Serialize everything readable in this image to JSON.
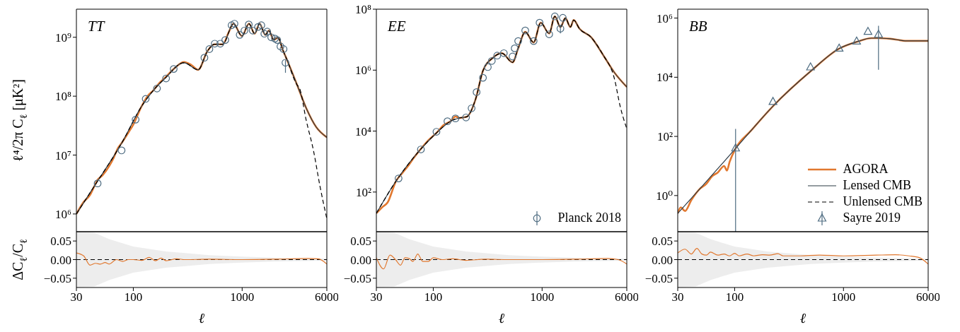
{
  "chart_data": [
    {
      "type": "line",
      "title": "TT",
      "ylabel": "ℓ⁴/2π C$_{ℓ}$ [μK²]",
      "log": "xy",
      "xlim": [
        30,
        6000
      ],
      "xticks": [
        30,
        100,
        1000,
        6000
      ],
      "ylim": [
        500000,
        3000000000
      ],
      "yticks": [
        {
          "value": 1000000,
          "label": "10⁶"
        },
        {
          "value": 10000000,
          "label": "10⁷"
        },
        {
          "value": 100000000,
          "label": "10⁸"
        },
        {
          "value": 1000000000,
          "label": "10⁹"
        }
      ],
      "tick_labels": "y",
      "legend": false,
      "series": [
        {
          "color": "#e1782f",
          "x": [
            30,
            35,
            40,
            44,
            47,
            52,
            60,
            66,
            72,
            79,
            90,
            100,
            119,
            135,
            153,
            175,
            195,
            240,
            292,
            340,
            394,
            479,
            556,
            664,
            750,
            832,
            995,
            1156,
            1303,
            1445,
            1633,
            1758,
            1950,
            2138,
            2371,
            2559,
            3199,
            3890,
            4786,
            6000
          ],
          "values": [
            1000000,
            1600000,
            2100000,
            3000000,
            3800000,
            4500000,
            6500000,
            9000000,
            13000000,
            16500000,
            24000000,
            33000000,
            67000000,
            100000000,
            126000000,
            170000000,
            205000000,
            300000000,
            380000000,
            340000000,
            280000000,
            580000000,
            760000000,
            760000000,
            1200000000,
            1700000000,
            1050000000,
            1700000000,
            1150000000,
            1700000000,
            1100000000,
            1300000000,
            910000000,
            980000000,
            600000000,
            430000000,
            155000000,
            62000000,
            30000000,
            20000000
          ]
        },
        {
          "color": "#2b3a45",
          "x": [
            30,
            44,
            79,
            119,
            153,
            195,
            292,
            394,
            479,
            556,
            664,
            832,
            995,
            1156,
            1303,
            1445,
            1633,
            1758,
            1950,
            2138,
            2371,
            2559,
            3199,
            3890,
            4786,
            6000
          ],
          "values": [
            1000000,
            3000000,
            16500000,
            67000000,
            126000000,
            200000000,
            370000000,
            280000000,
            580000000,
            760000000,
            760000000,
            1700000000,
            1050000000,
            1700000000,
            1150000000,
            1700000000,
            1100000000,
            1300000000,
            910000000,
            980000000,
            600000000,
            430000000,
            155000000,
            62000000,
            30000000,
            20000000
          ]
        },
        {
          "color": "#000000",
          "line_style": "dashed",
          "x": [
            30,
            44,
            79,
            119,
            153,
            195,
            292,
            394,
            479,
            556,
            664,
            832,
            995,
            1156,
            1303,
            1445,
            1633,
            1758,
            1950,
            2138,
            2371,
            2559,
            3199,
            3350,
            3890,
            4519,
            5200,
            6000
          ],
          "values": [
            1000000,
            3000000,
            16500000,
            67000000,
            126000000,
            200000000,
            370000000,
            280000000,
            580000000,
            760000000,
            760000000,
            1700000000,
            1050000000,
            1700000000,
            1150000000,
            1700000000,
            1100000000,
            1300000000,
            910000000,
            980000000,
            600000000,
            430000000,
            155000000,
            140000000,
            38000000,
            12000000,
            2900000,
            830000
          ]
        },
        {
          "type": "scatter",
          "color": "#4d6b80",
          "marker": "circle",
          "x": [
            47,
            78,
            105,
            130,
            165,
            200,
            235,
            450,
            500,
            560,
            630,
            700,
            800,
            850,
            950,
            1050,
            1150,
            1250,
            1400,
            1500,
            1600,
            1700,
            1850,
            2000,
            2100,
            2250,
            2400,
            2500
          ],
          "values": [
            3300000,
            12000000,
            40000000,
            90000000,
            135000000,
            200000000,
            290000000,
            450000000,
            630000000,
            780000000,
            780000000,
            900000000,
            1600000000,
            1700000000,
            1100000000,
            1300000000,
            1650000000,
            1300000000,
            1500000000,
            1600000000,
            1150000000,
            1250000000,
            1000000000,
            950000000,
            900000000,
            700000000,
            630000000,
            370000000
          ],
          "errors": [
            null,
            null,
            null,
            null,
            null,
            null,
            null,
            null,
            null,
            null,
            null,
            null,
            null,
            null,
            null,
            null,
            null,
            null,
            null,
            null,
            null,
            null,
            null,
            null,
            null,
            null,
            null,
            [
              250000000,
              410000000
            ]
          ]
        }
      ]
    },
    {
      "type": "line",
      "title": "EE",
      "log": "xy",
      "xlim": [
        30,
        6000
      ],
      "xticks": [
        30,
        100,
        1000,
        6000
      ],
      "ylim": [
        5,
        100000000
      ],
      "yticks": [
        {
          "value": 100,
          "label": "10²"
        },
        {
          "value": 10000,
          "label": "10⁴"
        },
        {
          "value": 1000000,
          "label": "10⁶"
        },
        {
          "value": 100000000,
          "label": "10⁸"
        }
      ],
      "tick_labels": "y",
      "legend": "bottom right",
      "series": [
        {
          "color": "#e1782f",
          "x": [
            30,
            34,
            38,
            45.5,
            52,
            60,
            66,
            74.7,
            90,
            107,
            125,
            144,
            160,
            174,
            203,
            245,
            286,
            351,
            427,
            535,
            603,
            700,
            836,
            971,
            1161,
            1309,
            1473,
            1637,
            1820,
            1950,
            2203,
            2820,
            3606,
            4645,
            6000
          ],
          "values": [
            20,
            32,
            45,
            230,
            420,
            800,
            1300,
            2300,
            5000,
            8700,
            16000,
            21000,
            30000,
            27000,
            29500,
            112000,
            950000,
            2500000,
            3600000,
            1800000,
            5200000,
            18000000,
            8100000,
            36000000,
            16000000,
            58000000,
            26000000,
            51000000,
            26000000,
            44000000,
            23000000,
            12000000,
            3300000,
            810000,
            280000
          ]
        },
        {
          "color": "#2b3a45",
          "x": [
            30,
            45.5,
            74.7,
            107,
            144,
            174,
            203,
            245,
            286,
            351,
            427,
            535,
            603,
            700,
            836,
            971,
            1161,
            1309,
            1473,
            1637,
            1820,
            1950,
            2203,
            2820,
            3606,
            4645,
            6000
          ],
          "values": [
            20,
            230,
            2300,
            8700,
            21000,
            27000,
            29500,
            112000,
            950000,
            2500000,
            3600000,
            1800000,
            5200000,
            18000000,
            8100000,
            36000000,
            16000000,
            58000000,
            26000000,
            51000000,
            26000000,
            44000000,
            23000000,
            12000000,
            3300000,
            810000,
            280000
          ]
        },
        {
          "color": "#000000",
          "line_style": "dashed",
          "x": [
            30,
            45.5,
            74.7,
            107,
            144,
            174,
            203,
            245,
            286,
            351,
            427,
            535,
            603,
            700,
            836,
            971,
            1161,
            1309,
            1473,
            1637,
            1820,
            1950,
            2203,
            2820,
            3606,
            4645,
            5200,
            6000
          ],
          "values": [
            20,
            230,
            2300,
            8700,
            21000,
            27000,
            29500,
            112000,
            950000,
            2500000,
            3600000,
            1800000,
            5200000,
            18000000,
            8100000,
            36000000,
            16000000,
            58000000,
            26000000,
            51000000,
            26000000,
            44000000,
            23000000,
            12000000,
            3300000,
            480000,
            68000,
            12000
          ]
        },
        {
          "type": "scatter",
          "name": "Planck 2018",
          "color": "#4d6b80",
          "marker": "circle",
          "x": [
            48,
            77,
            107,
            135,
            160,
            200,
            225,
            250,
            286,
            317,
            345,
            387,
            445,
            535,
            560,
            603,
            700,
            836,
            948,
            1161,
            1309,
            1473,
            1550
          ],
          "values": [
            280,
            2500,
            9500,
            21000,
            26000,
            28000,
            56000,
            190000,
            560000,
            1260000,
            2000000,
            3000000,
            3600000,
            2800000,
            5200000,
            9000000,
            20000000,
            9000000,
            36000000,
            15000000,
            58000000,
            23000000,
            52000000
          ],
          "errors": [
            null,
            null,
            null,
            null,
            null,
            null,
            null,
            null,
            null,
            null,
            null,
            null,
            null,
            null,
            null,
            null,
            null,
            null,
            null,
            null,
            null,
            [
              16000000,
              30000000
            ],
            null
          ]
        }
      ]
    },
    {
      "type": "line",
      "title": "BB",
      "log": "xy",
      "xlim": [
        30,
        6000
      ],
      "xticks": [
        30,
        100,
        1000,
        6000
      ],
      "ylim": [
        0.06,
        2000000
      ],
      "yticks": [
        {
          "value": 1,
          "label": "10⁰"
        },
        {
          "value": 100,
          "label": "10²"
        },
        {
          "value": 10000,
          "label": "10⁴"
        },
        {
          "value": 1000000,
          "label": "10⁶"
        }
      ],
      "tick_labels": "y",
      "legend": "bottom right",
      "series": [
        {
          "name": "AGORA",
          "color": "#e1782f",
          "x": [
            30,
            32,
            35,
            40,
            48,
            55,
            62,
            70,
            80,
            85,
            90,
            102,
            140,
            225,
            500,
            912,
            1340,
            1807,
            2098,
            2690,
            3800,
            6000
          ],
          "values": [
            0.25,
            0.4,
            0.3,
            0.7,
            1.7,
            2.5,
            4.5,
            6,
            10,
            7,
            14,
            39,
            150,
            1050,
            16000,
            93000,
            160000,
            210000,
            210000,
            200000,
            170000,
            170000
          ]
        },
        {
          "name": "Lensed CMB",
          "color": "#2b3a45",
          "x": [
            30,
            48,
            102,
            225,
            500,
            912,
            1340,
            1807,
            2098,
            2690,
            3800,
            6000
          ],
          "values": [
            0.25,
            1.7,
            39,
            1050,
            16000,
            93000,
            160000,
            210000,
            210000,
            200000,
            170000,
            170000
          ]
        },
        {
          "name": "Unlensed CMB",
          "color": "#000000",
          "line_style": "dashed"
        },
        {
          "type": "scatter",
          "name": "Sayre 2019",
          "color": "#4d6b80",
          "marker": "triangle",
          "x": [
            102,
            225,
            498,
            912,
            1320,
            1679,
            2098
          ],
          "values": [
            40,
            1500,
            22000,
            95000,
            165000,
            350000,
            280000
          ],
          "errors": [
            [
              0.06,
              180
            ],
            null,
            null,
            null,
            null,
            null,
            [
              18000,
              550000
            ]
          ]
        }
      ]
    },
    {
      "type": "line",
      "ylabel": "ΔC$_{ℓ}$/C$_{ℓ}$",
      "xlabel": "ℓ",
      "log": "x",
      "xlim": [
        30,
        6000
      ],
      "xticks": [
        30,
        100,
        1000,
        6000
      ],
      "ylim": [
        -0.075,
        0.075
      ],
      "yticks": [
        {
          "value": -0.05,
          "label": "−0.05"
        },
        {
          "value": 0,
          "label": "0.00"
        },
        {
          "value": 0.05,
          "label": "0.05"
        }
      ],
      "legend": false,
      "series": [
        {
          "color": "#000000",
          "line_style": "dashed",
          "x": [
            30,
            44,
            60,
            100,
            200,
            500,
            1000,
            2000,
            6000
          ],
          "values": [
            0,
            0,
            0,
            0,
            0,
            0,
            0,
            0,
            0
          ],
          "lower": [
            -0.075,
            -0.072,
            -0.055,
            -0.035,
            -0.022,
            -0.012,
            -0.008,
            -0.005,
            -0.003
          ],
          "upper": [
            0.075,
            0.072,
            0.055,
            0.035,
            0.022,
            0.012,
            0.008,
            0.005,
            0.003
          ]
        },
        {
          "color": "#e1782f",
          "x": [
            30,
            35,
            40,
            45,
            50,
            55,
            60,
            70,
            80,
            90,
            100,
            120,
            140,
            160,
            180,
            200,
            250,
            300,
            500,
            1000,
            2000,
            4000,
            5000,
            6000
          ],
          "values": [
            0.018,
            0.01,
            -0.015,
            -0.01,
            -0.012,
            -0.008,
            -0.012,
            0,
            -0.005,
            0,
            0,
            -0.002,
            0.006,
            -0.003,
            0.004,
            -0.003,
            0.002,
            0,
            0.001,
            0,
            0.001,
            0.003,
            0.002,
            -0.012
          ]
        }
      ]
    },
    {
      "type": "line",
      "xlabel": "ℓ",
      "log": "x",
      "xlim": [
        30,
        6000
      ],
      "xticks": [
        30,
        100,
        1000,
        6000
      ],
      "ylim": [
        -0.075,
        0.075
      ],
      "yticks": [
        {
          "value": -0.05,
          "label": "−0.05"
        },
        {
          "value": 0,
          "label": "0.00"
        },
        {
          "value": 0.05,
          "label": "0.05"
        }
      ],
      "legend": false,
      "series": [
        {
          "color": "#000000",
          "line_style": "dashed",
          "x": [
            30,
            44,
            60,
            100,
            200,
            500,
            1000,
            2000,
            6000
          ],
          "values": [
            0,
            0,
            0,
            0,
            0,
            0,
            0,
            0,
            0
          ],
          "lower": [
            -0.075,
            -0.072,
            -0.055,
            -0.035,
            -0.022,
            -0.012,
            -0.008,
            -0.005,
            -0.003
          ],
          "upper": [
            0.075,
            0.072,
            0.055,
            0.035,
            0.022,
            0.012,
            0.008,
            0.005,
            0.003
          ]
        },
        {
          "color": "#e1782f",
          "x": [
            30,
            35,
            40,
            45,
            50,
            55,
            60,
            65,
            72,
            80,
            90,
            100,
            120,
            150,
            200,
            300,
            500,
            1000,
            2000,
            4000,
            5000,
            6000
          ],
          "values": [
            0.005,
            -0.025,
            0.012,
            0,
            -0.015,
            0.005,
            0.003,
            -0.005,
            0.015,
            -0.005,
            -0.005,
            0.005,
            0,
            0.002,
            -0.002,
            0.001,
            0,
            0,
            0.001,
            0.003,
            0,
            -0.012
          ]
        }
      ]
    },
    {
      "type": "line",
      "xlabel": "ℓ",
      "log": "x",
      "xlim": [
        30,
        6000
      ],
      "xticks": [
        30,
        100,
        1000,
        6000
      ],
      "ylim": [
        -0.075,
        0.075
      ],
      "yticks": [
        {
          "value": -0.05,
          "label": "−0.05"
        },
        {
          "value": 0,
          "label": "0.00"
        },
        {
          "value": 0.05,
          "label": "0.05"
        }
      ],
      "legend": false,
      "series": [
        {
          "color": "#000000",
          "line_style": "dashed",
          "x": [
            30,
            44,
            60,
            100,
            200,
            500,
            1000,
            2000,
            6000
          ],
          "values": [
            0,
            0,
            0,
            0,
            0,
            0,
            0,
            0,
            0
          ],
          "lower": [
            -0.075,
            -0.072,
            -0.055,
            -0.035,
            -0.022,
            -0.012,
            -0.008,
            -0.005,
            -0.003
          ],
          "upper": [
            0.075,
            0.072,
            0.055,
            0.035,
            0.022,
            0.012,
            0.008,
            0.005,
            0.003
          ]
        },
        {
          "color": "#e1782f",
          "x": [
            30,
            35,
            40,
            45,
            50,
            55,
            60,
            70,
            80,
            90,
            100,
            110,
            130,
            150,
            180,
            210,
            250,
            280,
            400,
            600,
            1000,
            2000,
            3000,
            4000,
            5000,
            6000
          ],
          "values": [
            0.018,
            0.028,
            0.015,
            0.03,
            0.015,
            0.012,
            0.02,
            0.012,
            0.015,
            0.01,
            0.017,
            0.01,
            0.015,
            0.01,
            0.013,
            0.012,
            0.016,
            0.01,
            0.01,
            0.012,
            0.01,
            0.012,
            0.013,
            0.01,
            0.005,
            -0.012
          ]
        }
      ]
    }
  ]
}
